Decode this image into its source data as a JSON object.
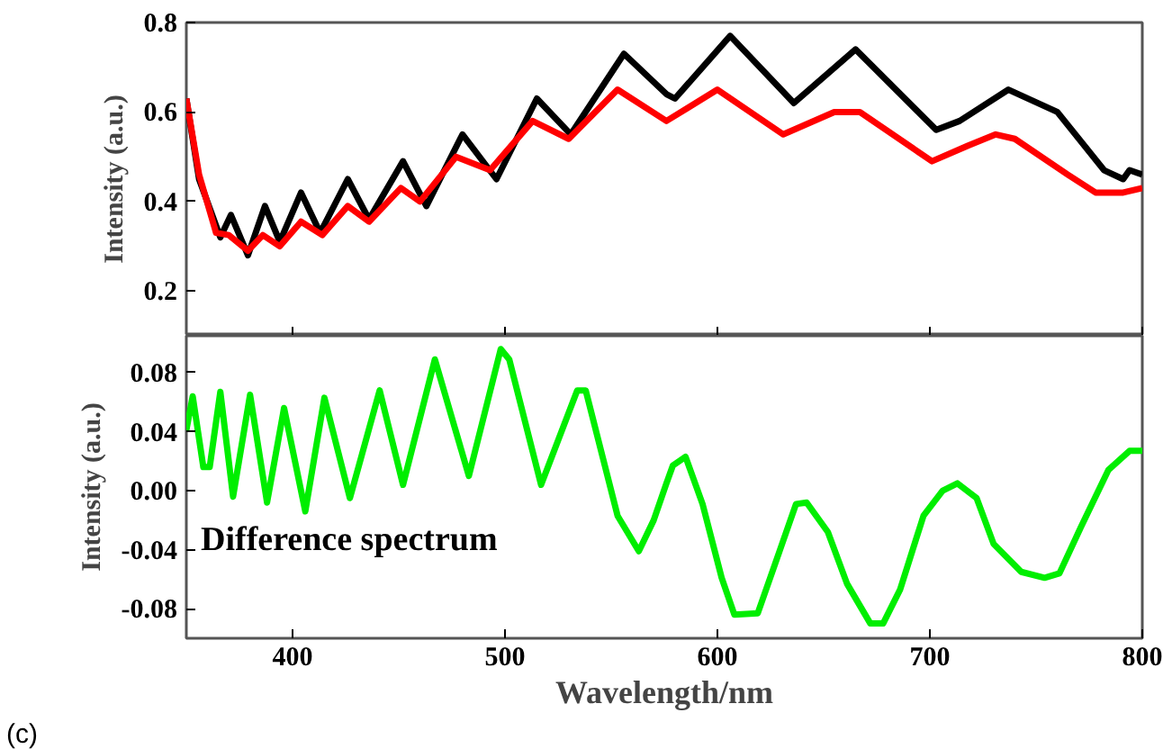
{
  "chart_data": [
    {
      "type": "line",
      "ylabel": "Intensity (a.u.)",
      "xlim": [
        350,
        800
      ],
      "xticks": [
        400,
        500,
        600,
        700,
        800
      ],
      "ylim": [
        0.1,
        0.8
      ],
      "yticks": [
        0.2,
        0.4,
        0.6,
        0.8
      ],
      "tick_labels": "y",
      "series": [
        {
          "color": "#000000",
          "x": [
            350,
            356,
            366,
            371,
            379,
            387,
            394,
            404,
            413,
            426,
            436,
            452,
            463,
            480,
            496,
            515,
            531,
            556,
            576,
            580,
            606,
            636,
            665,
            703,
            714,
            737,
            760,
            782,
            791,
            794,
            800
          ],
          "values": [
            0.63,
            0.45,
            0.32,
            0.37,
            0.28,
            0.39,
            0.31,
            0.42,
            0.33,
            0.45,
            0.36,
            0.49,
            0.39,
            0.55,
            0.45,
            0.63,
            0.55,
            0.73,
            0.64,
            0.63,
            0.77,
            0.62,
            0.74,
            0.56,
            0.58,
            0.65,
            0.6,
            0.47,
            0.45,
            0.47,
            0.46
          ]
        },
        {
          "color": "#ff0000",
          "x": [
            350,
            356,
            364,
            370,
            379,
            386,
            394,
            404,
            414,
            426,
            436,
            451,
            460,
            477,
            493,
            513,
            530,
            553,
            576,
            600,
            631,
            655,
            667,
            701,
            718,
            731,
            740,
            765,
            778,
            791,
            800
          ],
          "values": [
            0.63,
            0.46,
            0.33,
            0.325,
            0.29,
            0.325,
            0.3,
            0.355,
            0.325,
            0.39,
            0.355,
            0.43,
            0.4,
            0.5,
            0.47,
            0.58,
            0.54,
            0.65,
            0.58,
            0.65,
            0.55,
            0.6,
            0.6,
            0.49,
            0.525,
            0.55,
            0.54,
            0.46,
            0.42,
            0.42,
            0.43
          ]
        }
      ]
    },
    {
      "type": "line",
      "ylabel": "Intensity (a.u.)",
      "xlabel": "Wavelength/nm",
      "xlim": [
        350,
        800
      ],
      "xticks": [
        400,
        500,
        600,
        700,
        800
      ],
      "ylim": [
        -0.1,
        0.105
      ],
      "yticks": [
        {
          "value": -0.08,
          "label": "-0.08"
        },
        {
          "value": -0.04,
          "label": "-0.04"
        },
        {
          "value": 0,
          "label": "0.00"
        },
        {
          "value": 0.04,
          "label": "0.04"
        },
        {
          "value": 0.08,
          "label": "0.08"
        }
      ],
      "annotations": [
        "Difference spectrum",
        "(c)"
      ],
      "series": [
        {
          "color": "#00ee00",
          "x": [
            350,
            353,
            358,
            361,
            366,
            372,
            380,
            388,
            396,
            406,
            415,
            427,
            441,
            452,
            467,
            483,
            498,
            502,
            517,
            534,
            538,
            553,
            563,
            570,
            576,
            579,
            585,
            593,
            602,
            608,
            619,
            629,
            637,
            642,
            652,
            661,
            672,
            678,
            686,
            697,
            706,
            713,
            722,
            730,
            743,
            754,
            761,
            771,
            784,
            794,
            800
          ],
          "values": [
            0.041,
            0.064,
            0.016,
            0.016,
            0.067,
            -0.004,
            0.065,
            -0.008,
            0.056,
            -0.014,
            0.063,
            -0.005,
            0.068,
            0.004,
            0.089,
            0.01,
            0.096,
            0.089,
            0.004,
            0.068,
            0.068,
            -0.017,
            -0.041,
            -0.02,
            0.005,
            0.017,
            0.023,
            -0.009,
            -0.059,
            -0.084,
            -0.083,
            -0.042,
            -0.009,
            -0.008,
            -0.028,
            -0.063,
            -0.09,
            -0.09,
            -0.067,
            -0.017,
            0.0,
            0.005,
            -0.005,
            -0.036,
            -0.055,
            -0.059,
            -0.056,
            -0.025,
            0.014,
            0.027,
            0.027
          ]
        }
      ]
    }
  ]
}
